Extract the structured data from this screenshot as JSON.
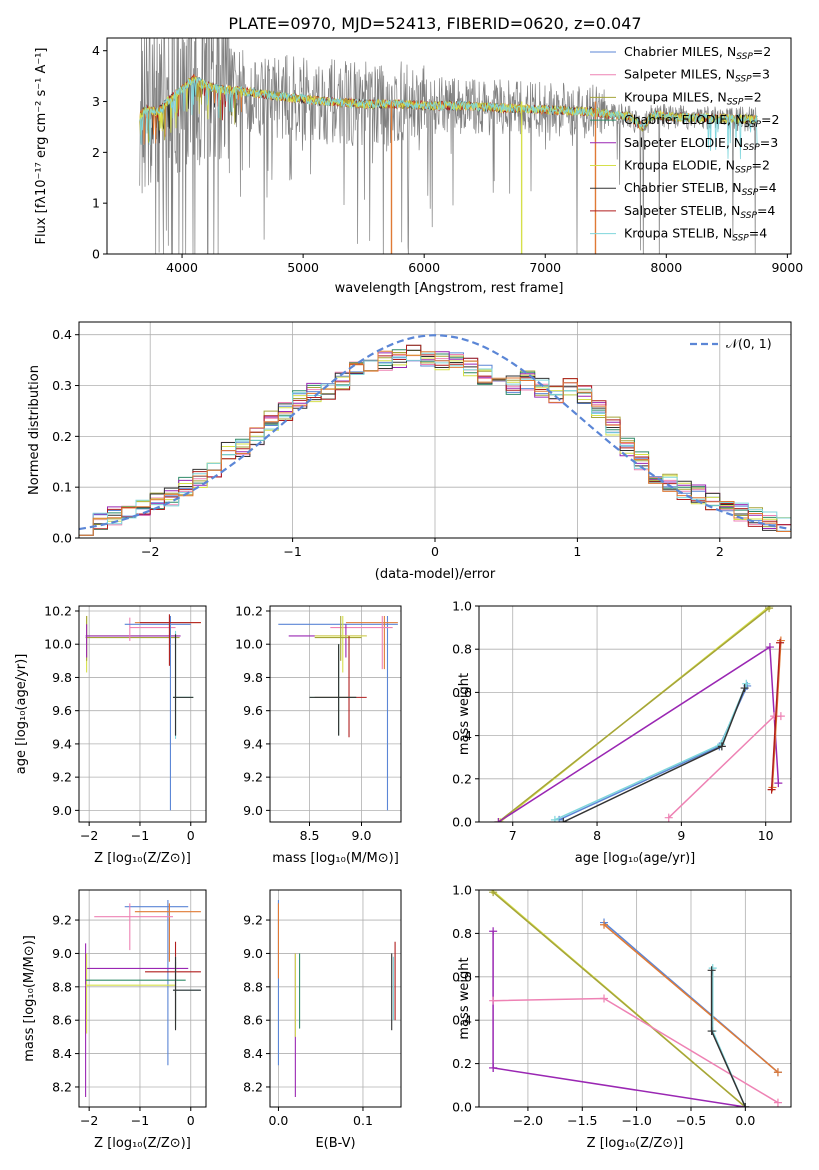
{
  "figure_title": "PLATE=0970, MJD=52413, FIBERID=0620, z=0.047",
  "colors": {
    "Chabrier MILES": "#5b86d6",
    "Salpeter MILES": "#ee82b4",
    "Kroupa MILES": "#a5a43a",
    "Chabrier ELODIE": "#2f8a67",
    "Salpeter ELODIE": "#9a27b3",
    "Kroupa ELODIE": "#d6e04a",
    "Chabrier STELIB": "#333333",
    "Salpeter STELIB": "#b01e1e",
    "Kroupa STELIB": "#7fd6dc",
    "data": "#808080",
    "orange": "#e07a35",
    "normal": "#5b86d6"
  },
  "chart_data": [
    {
      "id": "spectrum",
      "type": "line",
      "xlabel": "wavelength [Angstrom, rest frame]",
      "ylabel": "Flux [fλ10⁻¹⁷ erg cm⁻² s⁻¹ A⁻¹]",
      "xlim": [
        3380,
        9030
      ],
      "ylim": [
        0,
        4.25
      ],
      "xticks": [
        "4000",
        "5000",
        "6000",
        "7000",
        "8000",
        "9000"
      ],
      "yticks": [
        "0",
        "1",
        "2",
        "3",
        "4"
      ],
      "legend_location": "top-right",
      "legend": [
        "Chabrier MILES, N_SSP=2",
        "Salpeter MILES, N_SSP=3",
        "Kroupa MILES, N_SSP=2",
        "Chabrier ELODIE, N_SSP=2",
        "Salpeter ELODIE, N_SSP=3",
        "Kroupa ELODIE, N_SSP=2",
        "Chabrier STELIB, N_SSP=4",
        "Salpeter STELIB, N_SSP=4",
        "Kroupa STELIB, N_SSP=4"
      ],
      "continuum_x": [
        3650,
        3700,
        3800,
        3900,
        4000,
        4100,
        4200,
        4300,
        4500,
        4800,
        5000,
        5200,
        5500,
        5800,
        6000,
        6300,
        6600,
        6900,
        7200,
        7400,
        7500,
        7700,
        7800,
        7900,
        8000,
        8200,
        8400,
        8600,
        8750
      ],
      "continuum_y": [
        2.7,
        2.85,
        2.8,
        3.05,
        3.25,
        3.45,
        3.3,
        3.25,
        3.2,
        3.1,
        3.05,
        3.0,
        2.95,
        2.95,
        2.92,
        2.92,
        2.88,
        2.85,
        2.82,
        2.8,
        2.75,
        2.7,
        2.5,
        2.75,
        2.7,
        2.68,
        2.67,
        2.66,
        2.65
      ]
    },
    {
      "id": "residual-histogram",
      "type": "line",
      "xlabel": "(data-model)/error",
      "ylabel": "Normed distribution",
      "xlim": [
        -2.5,
        2.5
      ],
      "ylim": [
        0,
        0.425
      ],
      "xticks": [
        "−2",
        "−1",
        "0",
        "1",
        "2"
      ],
      "yticks": [
        "0.0",
        "0.1",
        "0.2",
        "0.3",
        "0.4"
      ],
      "legend": [
        "𝒩(0, 1)"
      ],
      "legend_location": "top-right",
      "bin_centers": [
        -2.45,
        -2.35,
        -2.25,
        -2.15,
        -2.05,
        -1.95,
        -1.85,
        -1.75,
        -1.65,
        -1.55,
        -1.45,
        -1.35,
        -1.25,
        -1.15,
        -1.05,
        -0.95,
        -0.85,
        -0.75,
        -0.65,
        -0.55,
        -0.45,
        -0.35,
        -0.25,
        -0.15,
        -0.05,
        0.05,
        0.15,
        0.25,
        0.35,
        0.45,
        0.55,
        0.65,
        0.75,
        0.85,
        0.95,
        1.05,
        1.15,
        1.25,
        1.35,
        1.45,
        1.55,
        1.65,
        1.75,
        1.85,
        1.95,
        2.05,
        2.15,
        2.25,
        2.35,
        2.45
      ],
      "hist_values": [
        0.025,
        0.035,
        0.042,
        0.05,
        0.062,
        0.07,
        0.082,
        0.1,
        0.115,
        0.14,
        0.17,
        0.18,
        0.2,
        0.23,
        0.25,
        0.27,
        0.285,
        0.29,
        0.31,
        0.33,
        0.34,
        0.35,
        0.355,
        0.36,
        0.355,
        0.35,
        0.345,
        0.335,
        0.32,
        0.305,
        0.3,
        0.31,
        0.295,
        0.28,
        0.3,
        0.28,
        0.255,
        0.22,
        0.18,
        0.15,
        0.12,
        0.11,
        0.095,
        0.085,
        0.07,
        0.06,
        0.05,
        0.04,
        0.032,
        0.025
      ]
    },
    {
      "id": "age-vs-Z",
      "type": "scatter",
      "xlabel": "Z [log₁₀(Z/Z⊙)]",
      "ylabel": "age  [log₁₀(age/yr)]",
      "xlim": [
        -2.2,
        0.3
      ],
      "ylim": [
        8.93,
        10.23
      ],
      "xticks": [
        "−2",
        "−1",
        "0"
      ],
      "yticks": [
        "9.0",
        "9.2",
        "9.4",
        "9.6",
        "9.8",
        "10.0",
        "10.2"
      ]
    },
    {
      "id": "age-vs-mass",
      "type": "scatter",
      "xlabel": "mass [log₁₀(M/M⊙)]",
      "xlim": [
        8.12,
        9.38
      ],
      "ylim": [
        8.93,
        10.23
      ],
      "xticks": [
        "8.5",
        "9.0"
      ],
      "yticks": [
        "9.0",
        "9.2",
        "9.4",
        "9.6",
        "9.8",
        "10.0",
        "10.2"
      ]
    },
    {
      "id": "massweight-vs-age",
      "type": "line",
      "xlabel": "age  [log₁₀(age/yr)]",
      "ylabel": "mass weight",
      "xlim": [
        6.6,
        10.3
      ],
      "ylim": [
        0,
        1.0
      ],
      "xticks": [
        "7",
        "8",
        "9",
        "10"
      ],
      "yticks": [
        "0.0",
        "0.2",
        "0.4",
        "0.6",
        "0.8",
        "1.0"
      ],
      "series": [
        {
          "key": "Kroupa ELODIE",
          "x": [
            6.85,
            10.05
          ],
          "y": [
            0.0,
            1.0
          ]
        },
        {
          "key": "Kroupa MILES",
          "x": [
            6.83,
            10.04
          ],
          "y": [
            0.0,
            0.99
          ]
        },
        {
          "key": "Salpeter ELODIE",
          "x": [
            6.83,
            10.05,
            10.15
          ],
          "y": [
            0.0,
            0.81,
            0.18
          ]
        },
        {
          "key": "Chabrier MILES",
          "x": [
            7.55,
            9.45,
            9.78
          ],
          "y": [
            0.01,
            0.35,
            0.63
          ]
        },
        {
          "key": "Kroupa STELIB",
          "x": [
            7.5,
            9.47,
            9.77
          ],
          "y": [
            0.01,
            0.36,
            0.64
          ]
        },
        {
          "key": "Chabrier STELIB",
          "x": [
            7.6,
            9.48,
            9.75
          ],
          "y": [
            0.0,
            0.35,
            0.62
          ]
        },
        {
          "key": "Salpeter MILES",
          "x": [
            8.85,
            10.1,
            10.18
          ],
          "y": [
            0.02,
            0.49,
            0.49
          ]
        },
        {
          "key": "orange",
          "x": [
            10.08,
            10.18
          ],
          "y": [
            0.16,
            0.84
          ]
        },
        {
          "key": "Salpeter STELIB",
          "x": [
            10.07,
            10.17
          ],
          "y": [
            0.15,
            0.83
          ]
        }
      ]
    },
    {
      "id": "mass-vs-Z",
      "type": "scatter",
      "xlabel": "Z [log₁₀(Z/Z⊙)]",
      "ylabel": "mass [log₁₀(M/M⊙)]",
      "xlim": [
        -2.2,
        0.3
      ],
      "ylim": [
        8.08,
        9.38
      ],
      "xticks": [
        "−2",
        "−1",
        "0"
      ],
      "yticks": [
        "8.2",
        "8.4",
        "8.6",
        "8.8",
        "9.0",
        "9.2"
      ]
    },
    {
      "id": "mass-vs-ebv",
      "type": "scatter",
      "xlabel": "E(B-V)",
      "xlim": [
        -0.01,
        0.145
      ],
      "ylim": [
        8.08,
        9.38
      ],
      "xticks": [
        "0.0",
        "0.1"
      ],
      "yticks": [
        "8.2",
        "8.4",
        "8.6",
        "8.8",
        "9.0",
        "9.2"
      ]
    },
    {
      "id": "massweight-vs-Z",
      "type": "line",
      "xlabel": "Z [log₁₀(Z/Z⊙)]",
      "ylabel": "mass weight",
      "xlim": [
        -2.45,
        0.42
      ],
      "ylim": [
        0,
        1.0
      ],
      "xticks": [
        "−2.0",
        "−1.5",
        "−1.0",
        "−0.5",
        "0.0"
      ],
      "yticks": [
        "0.0",
        "0.2",
        "0.4",
        "0.6",
        "0.8",
        "1.0"
      ],
      "series": [
        {
          "key": "Kroupa ELODIE",
          "x": [
            -2.33,
            0.0
          ],
          "y": [
            1.0,
            0.0
          ]
        },
        {
          "key": "Kroupa MILES",
          "x": [
            -2.32,
            0.0
          ],
          "y": [
            0.99,
            0.0
          ]
        },
        {
          "key": "Salpeter ELODIE",
          "x": [
            -2.32,
            -2.32,
            -2.32,
            0.0
          ],
          "y": [
            0.81,
            0.18,
            0.18,
            0.0
          ]
        },
        {
          "key": "Salpeter MILES",
          "x": [
            -2.32,
            -1.3,
            0.3
          ],
          "y": [
            0.49,
            0.5,
            0.02
          ]
        },
        {
          "key": "Chabrier MILES",
          "x": [
            -1.3,
            0.3
          ],
          "y": [
            0.85,
            0.16
          ]
        },
        {
          "key": "orange",
          "x": [
            -1.3,
            0.3
          ],
          "y": [
            0.84,
            0.16
          ]
        },
        {
          "key": "Kroupa STELIB",
          "x": [
            -0.3,
            -0.3,
            0.0
          ],
          "y": [
            0.64,
            0.35,
            0.0
          ]
        },
        {
          "key": "Chabrier STELIB",
          "x": [
            -0.31,
            -0.31,
            0.0
          ],
          "y": [
            0.63,
            0.35,
            0.0
          ]
        }
      ]
    }
  ],
  "errorbars": {
    "age_Z": [
      {
        "c": "Kroupa ELODIE",
        "x": -2.05,
        "y": 10.05,
        "xlo": -2.05,
        "xhi": -0.25,
        "ylo": 9.83,
        "yhi": 10.17
      },
      {
        "c": "Kroupa MILES",
        "x": -2.05,
        "y": 10.04,
        "xlo": -2.07,
        "xhi": -0.22,
        "ylo": 9.9,
        "yhi": 10.17
      },
      {
        "c": "Salpeter ELODIE",
        "x": -2.05,
        "y": 10.05,
        "xlo": -2.07,
        "xhi": -0.2,
        "ylo": 9.92,
        "yhi": 10.12
      },
      {
        "c": "Salpeter MILES",
        "x": -1.2,
        "y": 10.1,
        "xlo": -1.2,
        "xhi": -0.3,
        "ylo": 10.02,
        "yhi": 10.16
      },
      {
        "c": "orange",
        "x": -0.4,
        "y": 10.13,
        "xlo": -1.1,
        "xhi": 0.2,
        "ylo": 9.98,
        "yhi": 10.17
      },
      {
        "c": "Chabrier MILES",
        "x": -0.4,
        "y": 10.12,
        "xlo": -1.3,
        "xhi": 0.0,
        "ylo": 9.0,
        "yhi": 10.17
      },
      {
        "c": "Salpeter STELIB",
        "x": -0.42,
        "y": 10.13,
        "xlo": -1.0,
        "xhi": 0.2,
        "ylo": 9.87,
        "yhi": 10.18
      },
      {
        "c": "Kroupa STELIB",
        "x": -0.3,
        "y": 9.68,
        "xlo": -0.35,
        "xhi": 0.0,
        "ylo": 9.43,
        "yhi": 10.08
      },
      {
        "c": "Chabrier ELODIE",
        "x": -0.3,
        "y": 9.68,
        "xlo": -0.35,
        "xhi": 0.05,
        "ylo": 9.45,
        "yhi": 10.05
      },
      {
        "c": "Chabrier STELIB",
        "x": -0.3,
        "y": 9.68,
        "xlo": -0.35,
        "xhi": 0.05,
        "ylo": 9.45,
        "yhi": 10.06
      }
    ],
    "age_mass": [
      {
        "c": "Chabrier MILES",
        "x": 9.25,
        "y": 10.12,
        "xlo": 8.2,
        "xhi": 9.35,
        "ylo": 9.0,
        "yhi": 10.17
      },
      {
        "c": "orange",
        "x": 9.22,
        "y": 10.13,
        "xlo": 8.85,
        "xhi": 9.35,
        "ylo": 9.85,
        "yhi": 10.17
      },
      {
        "c": "Salpeter MILES",
        "x": 9.2,
        "y": 10.1,
        "xlo": 8.7,
        "xhi": 9.3,
        "ylo": 9.85,
        "yhi": 10.17
      },
      {
        "c": "Salpeter ELODIE",
        "x": 8.85,
        "y": 10.05,
        "xlo": 8.3,
        "xhi": 9.05,
        "ylo": 9.92,
        "yhi": 10.12
      },
      {
        "c": "Kroupa ELODIE",
        "x": 8.82,
        "y": 10.05,
        "xlo": 8.55,
        "xhi": 9.05,
        "ylo": 9.83,
        "yhi": 10.17
      },
      {
        "c": "Kroupa MILES",
        "x": 8.8,
        "y": 10.04,
        "xlo": 8.55,
        "xhi": 9.0,
        "ylo": 9.9,
        "yhi": 10.17
      },
      {
        "c": "Salpeter STELIB",
        "x": 8.88,
        "y": 9.68,
        "xlo": 8.55,
        "xhi": 9.05,
        "ylo": 9.44,
        "yhi": 10.05
      },
      {
        "c": "Chabrier ELODIE",
        "x": 8.78,
        "y": 9.68,
        "xlo": 8.5,
        "xhi": 8.95,
        "ylo": 9.45,
        "yhi": 10.0
      },
      {
        "c": "Chabrier STELIB",
        "x": 8.78,
        "y": 9.68,
        "xlo": 8.5,
        "xhi": 8.95,
        "ylo": 9.45,
        "yhi": 10.0
      }
    ],
    "mass_Z": [
      {
        "c": "Chabrier MILES",
        "x": -0.45,
        "y": 9.28,
        "xlo": -1.3,
        "xhi": -0.05,
        "ylo": 8.33,
        "yhi": 9.32
      },
      {
        "c": "orange",
        "x": -0.42,
        "y": 9.25,
        "xlo": -1.1,
        "xhi": 0.2,
        "ylo": 8.95,
        "yhi": 9.3
      },
      {
        "c": "Salpeter MILES",
        "x": -1.2,
        "y": 9.22,
        "xlo": -1.9,
        "xhi": -0.35,
        "ylo": 9.02,
        "yhi": 9.3
      },
      {
        "c": "Salpeter ELODIE",
        "x": -2.07,
        "y": 8.91,
        "xlo": -2.07,
        "xhi": -0.05,
        "ylo": 8.14,
        "yhi": 9.06
      },
      {
        "c": "Salpeter STELIB",
        "x": -0.3,
        "y": 8.89,
        "xlo": -0.9,
        "xhi": 0.2,
        "ylo": 8.6,
        "yhi": 9.07
      },
      {
        "c": "Kroupa ELODIE",
        "x": -2.05,
        "y": 8.81,
        "xlo": -2.07,
        "xhi": -0.3,
        "ylo": 8.52,
        "yhi": 9.0
      },
      {
        "c": "Chabrier ELODIE",
        "x": -0.3,
        "y": 8.84,
        "xlo": -2.07,
        "xhi": -0.1,
        "ylo": 8.55,
        "yhi": 8.95
      },
      {
        "c": "Kroupa STELIB",
        "x": -0.3,
        "y": 8.78,
        "xlo": -0.35,
        "xhi": 0.2,
        "ylo": 8.6,
        "yhi": 8.98
      },
      {
        "c": "Chabrier STELIB",
        "x": -0.3,
        "y": 8.78,
        "xlo": -0.35,
        "xhi": 0.2,
        "ylo": 8.54,
        "yhi": 8.98
      }
    ],
    "mass_ebv": [
      {
        "c": "Chabrier MILES",
        "x": 0.0,
        "y": 8.8,
        "xlo": 0.0,
        "xhi": 0.0,
        "ylo": 8.33,
        "yhi": 9.32
      },
      {
        "c": "orange",
        "x": 0.0,
        "y": 9.1,
        "xlo": 0.0,
        "xhi": 0.0,
        "ylo": 8.85,
        "yhi": 9.3
      },
      {
        "c": "Salpeter ELODIE",
        "x": 0.02,
        "y": 8.6,
        "xlo": 0.02,
        "xhi": 0.02,
        "ylo": 8.14,
        "yhi": 9.0
      },
      {
        "c": "Kroupa ELODIE",
        "x": 0.02,
        "y": 8.75,
        "xlo": 0.02,
        "xhi": 0.02,
        "ylo": 8.5,
        "yhi": 9.0
      },
      {
        "c": "Chabrier ELODIE",
        "x": 0.025,
        "y": 8.7,
        "xlo": 0.025,
        "xhi": 0.025,
        "ylo": 8.55,
        "yhi": 9.0
      },
      {
        "c": "Salpeter STELIB",
        "x": 0.138,
        "y": 8.85,
        "xlo": 0.138,
        "xhi": 0.138,
        "ylo": 8.6,
        "yhi": 9.07
      },
      {
        "c": "Chabrier STELIB",
        "x": 0.134,
        "y": 8.78,
        "xlo": 0.134,
        "xhi": 0.134,
        "ylo": 8.54,
        "yhi": 9.0
      },
      {
        "c": "Kroupa STELIB",
        "x": 0.136,
        "y": 8.78,
        "xlo": 0.136,
        "xhi": 0.136,
        "ylo": 8.6,
        "yhi": 8.98
      }
    ]
  }
}
